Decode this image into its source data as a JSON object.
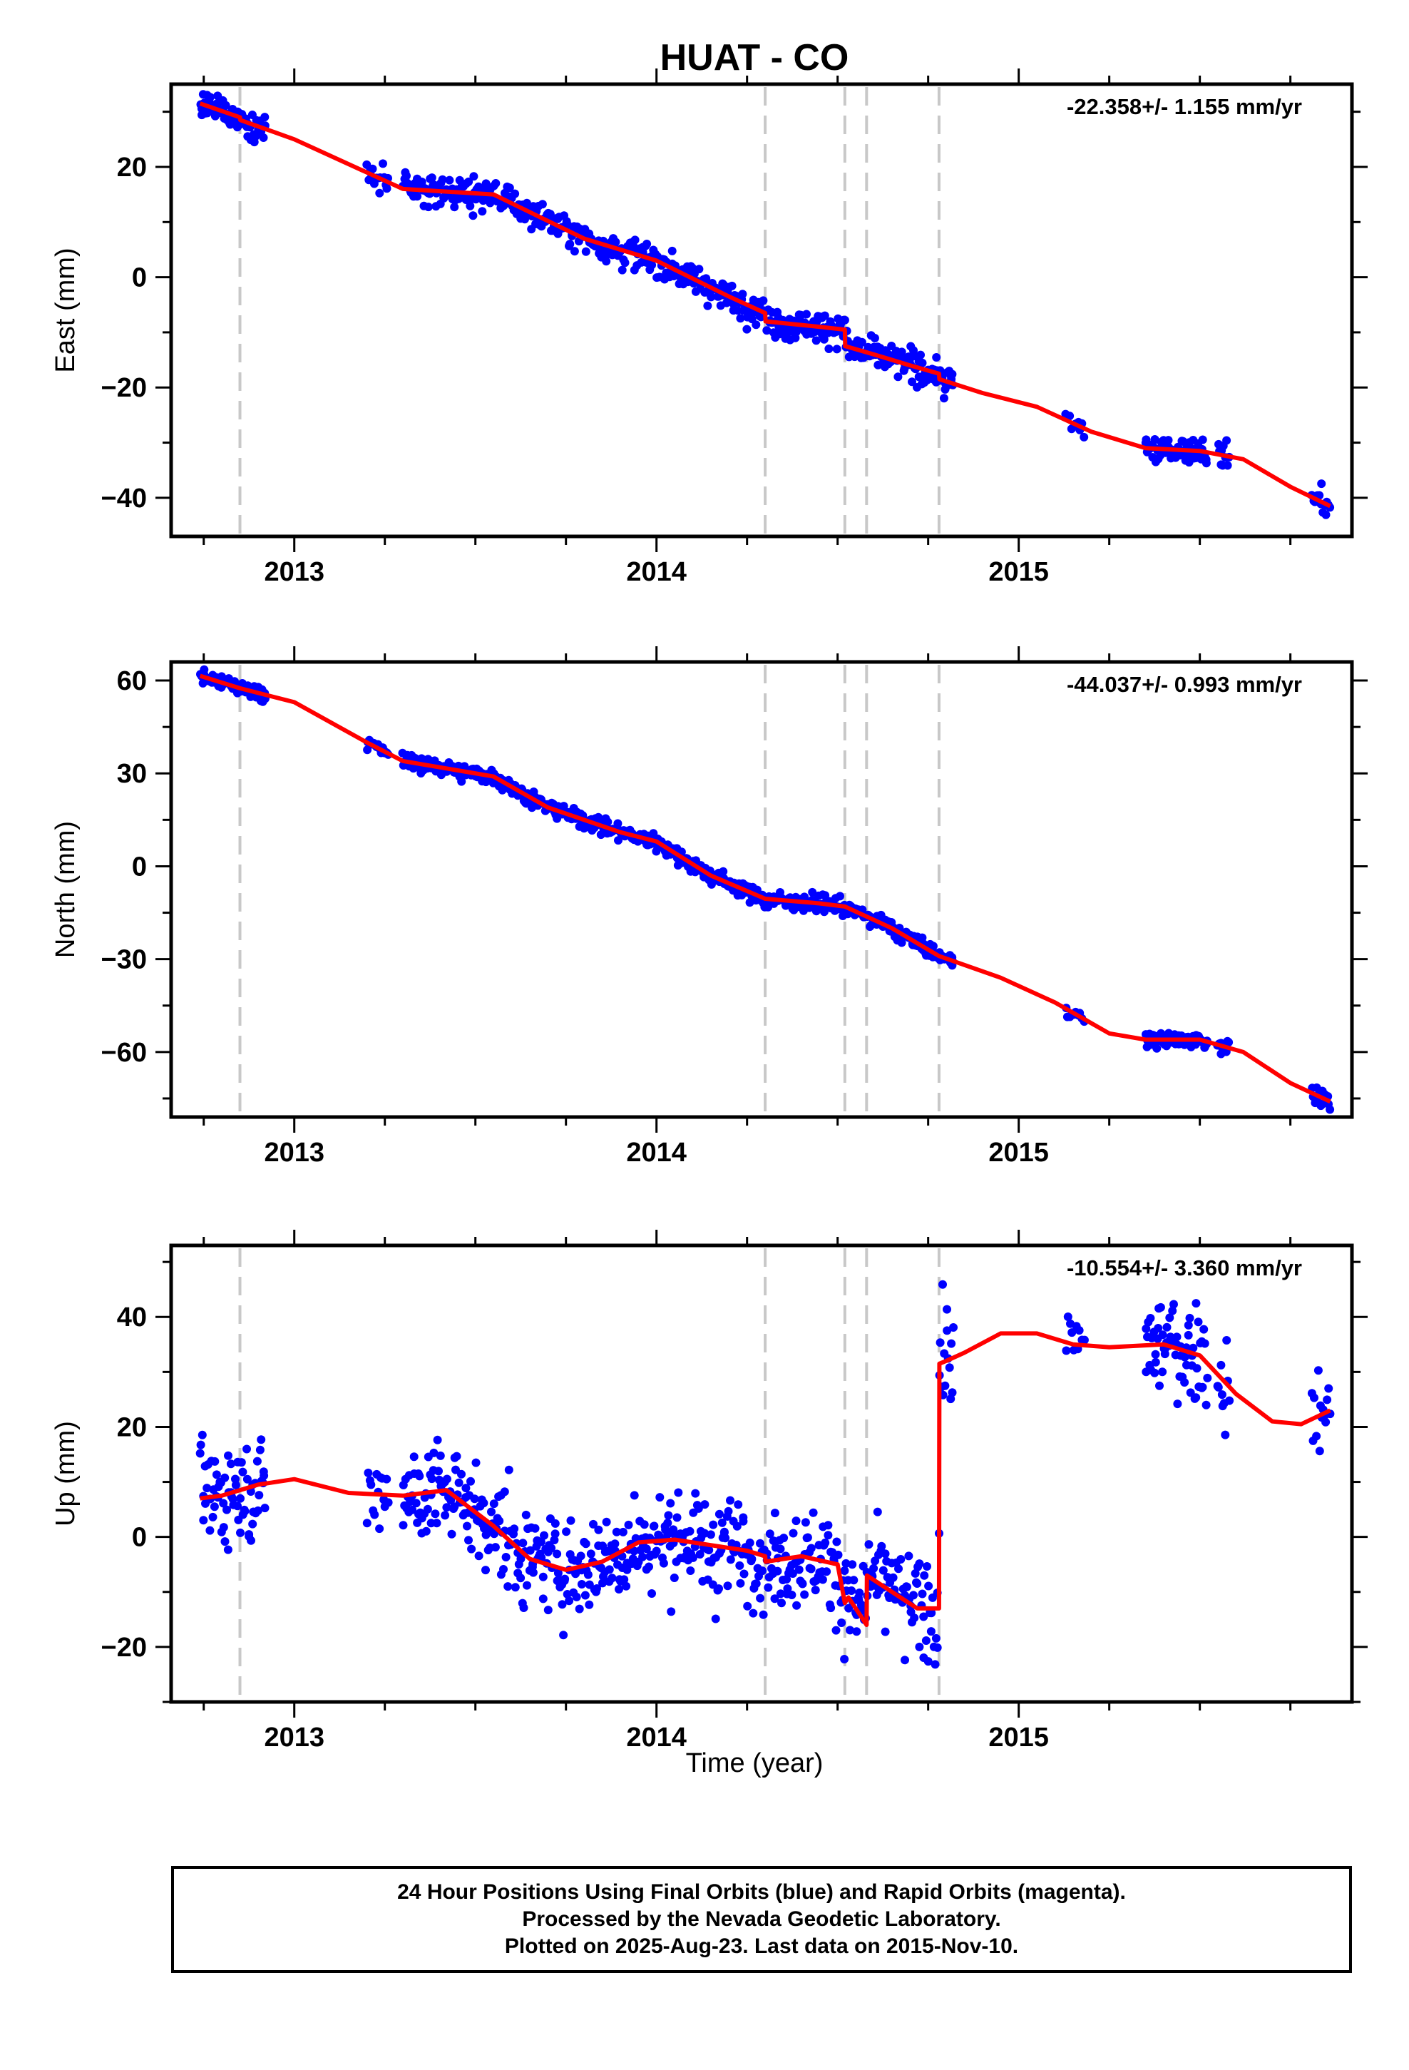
{
  "title": "HUAT - CO",
  "x_axis_label": "Time (year)",
  "colors": {
    "final_orbits": "#0000ff",
    "model_fit": "#ff0000",
    "step_lines": "#c8c8c8",
    "frame": "#000000"
  },
  "footer": {
    "line1": "24 Hour Positions Using Final Orbits (blue) and Rapid Orbits (magenta).",
    "line2": "Processed by the Nevada Geodetic Laboratory.",
    "line3": "Plotted on 2025-Aug-23. Last data on 2015-Nov-10."
  },
  "chart_data": [
    {
      "type": "scatter",
      "component": "East",
      "ylabel": "East (mm)",
      "xlabel": "",
      "rate_label": "-22.358+/- 1.155 mm/yr",
      "xlim": [
        2012.66,
        2015.92
      ],
      "ylim": [
        -47,
        35
      ],
      "x_ticks": [
        2013,
        2014,
        2015
      ],
      "y_ticks": [
        -40,
        -20,
        0,
        20
      ],
      "step_lines_x": [
        2012.85,
        2014.3,
        2014.52,
        2014.58,
        2014.78
      ],
      "model_series": {
        "name": "model",
        "x": [
          2012.74,
          2012.85,
          2012.851,
          2013.0,
          2013.2,
          2013.3,
          2013.55,
          2013.8,
          2014.0,
          2014.2,
          2014.3,
          2014.301,
          2014.45,
          2014.52,
          2014.521,
          2014.6,
          2014.7,
          2014.78,
          2014.781,
          2014.9,
          2015.05,
          2015.2,
          2015.35,
          2015.5,
          2015.62,
          2015.75,
          2015.86
        ],
        "y": [
          31.5,
          29.0,
          28.5,
          25.0,
          19.0,
          16.0,
          15.0,
          7.0,
          3.0,
          -3.5,
          -6.5,
          -8.0,
          -9.0,
          -9.5,
          -12.5,
          -14.0,
          -16.0,
          -17.5,
          -18.5,
          -21.0,
          -23.5,
          -28.0,
          -31.0,
          -31.5,
          -33.0,
          -38.0,
          -41.5
        ]
      },
      "observed_series": {
        "name": "daily positions",
        "segments": [
          {
            "x0": 2012.74,
            "x1": 2012.92,
            "count": 70,
            "scatter": 1.3
          },
          {
            "x0": 2013.2,
            "x1": 2013.26,
            "count": 15,
            "scatter": 1.3
          },
          {
            "x0": 2013.3,
            "x1": 2014.82,
            "count": 560,
            "scatter": 1.4
          },
          {
            "x0": 2015.13,
            "x1": 2015.18,
            "count": 10,
            "scatter": 1.0
          },
          {
            "x0": 2015.35,
            "x1": 2015.52,
            "count": 65,
            "scatter": 1.3
          },
          {
            "x0": 2015.55,
            "x1": 2015.58,
            "count": 10,
            "scatter": 1.2
          },
          {
            "x0": 2015.81,
            "x1": 2015.86,
            "count": 14,
            "scatter": 1.5
          }
        ]
      }
    },
    {
      "type": "scatter",
      "component": "North",
      "ylabel": "North (mm)",
      "xlabel": "",
      "rate_label": "-44.037+/- 0.993 mm/yr",
      "xlim": [
        2012.66,
        2015.92
      ],
      "ylim": [
        -81,
        66
      ],
      "x_ticks": [
        2013,
        2014,
        2015
      ],
      "y_ticks": [
        -60,
        -30,
        0,
        30,
        60
      ],
      "step_lines_x": [
        2012.85,
        2014.3,
        2014.52,
        2014.58,
        2014.78
      ],
      "model_series": {
        "name": "model",
        "x": [
          2012.74,
          2012.85,
          2013.0,
          2013.2,
          2013.3,
          2013.55,
          2013.7,
          2013.9,
          2014.0,
          2014.15,
          2014.3,
          2014.45,
          2014.52,
          2014.65,
          2014.78,
          2014.95,
          2015.1,
          2015.25,
          2015.35,
          2015.5,
          2015.62,
          2015.75,
          2015.86
        ],
        "y": [
          61.5,
          57.5,
          53.0,
          40.0,
          34.0,
          29.0,
          19.0,
          11.0,
          8.0,
          -3.0,
          -10.5,
          -12.0,
          -13.0,
          -20.0,
          -29.0,
          -36.0,
          -44.0,
          -54.0,
          -56.0,
          -56.0,
          -60.0,
          -70.0,
          -76.0
        ]
      },
      "observed_series": {
        "name": "daily positions",
        "segments": [
          {
            "x0": 2012.74,
            "x1": 2012.92,
            "count": 70,
            "scatter": 1.1
          },
          {
            "x0": 2013.2,
            "x1": 2013.26,
            "count": 15,
            "scatter": 1.4
          },
          {
            "x0": 2013.3,
            "x1": 2014.82,
            "count": 560,
            "scatter": 1.3
          },
          {
            "x0": 2015.13,
            "x1": 2015.18,
            "count": 10,
            "scatter": 1.1
          },
          {
            "x0": 2015.35,
            "x1": 2015.52,
            "count": 65,
            "scatter": 1.2
          },
          {
            "x0": 2015.55,
            "x1": 2015.58,
            "count": 10,
            "scatter": 1.2
          },
          {
            "x0": 2015.81,
            "x1": 2015.86,
            "count": 14,
            "scatter": 1.3
          }
        ]
      }
    },
    {
      "type": "scatter",
      "component": "Up",
      "ylabel": "Up (mm)",
      "xlabel": "Time (year)",
      "rate_label": "-10.554+/- 3.360 mm/yr",
      "xlim": [
        2012.66,
        2015.92
      ],
      "ylim": [
        -30,
        53
      ],
      "x_ticks": [
        2013,
        2014,
        2015
      ],
      "y_ticks": [
        -20,
        0,
        20,
        40
      ],
      "step_lines_x": [
        2012.85,
        2014.3,
        2014.52,
        2014.58,
        2014.78
      ],
      "model_series": {
        "name": "model",
        "x": [
          2012.74,
          2012.8,
          2012.85,
          2012.9,
          2013.0,
          2013.15,
          2013.3,
          2013.42,
          2013.55,
          2013.65,
          2013.75,
          2013.85,
          2013.95,
          2014.05,
          2014.15,
          2014.25,
          2014.3,
          2014.301,
          2014.4,
          2014.5,
          2014.52,
          2014.53,
          2014.58,
          2014.581,
          2014.65,
          2014.72,
          2014.78,
          2014.781,
          2014.8,
          2014.85,
          2014.95,
          2015.05,
          2015.15,
          2015.25,
          2015.4,
          2015.5,
          2015.6,
          2015.7,
          2015.78,
          2015.86
        ],
        "y": [
          7.0,
          7.5,
          8.5,
          9.5,
          10.5,
          8.0,
          7.5,
          8.5,
          2.0,
          -4.0,
          -6.0,
          -4.5,
          -1.0,
          -0.5,
          -1.5,
          -2.5,
          -3.5,
          -4.5,
          -3.5,
          -5.0,
          -12.0,
          -11.0,
          -16.0,
          -7.0,
          -10.0,
          -13.0,
          -13.0,
          31.5,
          32.0,
          33.5,
          37.0,
          37.0,
          35.0,
          34.5,
          35.0,
          33.0,
          26.0,
          21.0,
          20.5,
          23.0
        ]
      },
      "observed_series": {
        "name": "daily positions",
        "segments": [
          {
            "x0": 2012.74,
            "x1": 2012.92,
            "count": 70,
            "scatter": 4.5
          },
          {
            "x0": 2013.2,
            "x1": 2013.26,
            "count": 15,
            "scatter": 4.5
          },
          {
            "x0": 2013.3,
            "x1": 2014.82,
            "count": 560,
            "scatter": 4.5
          },
          {
            "x0": 2015.13,
            "x1": 2015.18,
            "count": 10,
            "scatter": 3.5
          },
          {
            "x0": 2015.35,
            "x1": 2015.52,
            "count": 65,
            "scatter": 4.5
          },
          {
            "x0": 2015.55,
            "x1": 2015.58,
            "count": 10,
            "scatter": 4.0
          },
          {
            "x0": 2015.81,
            "x1": 2015.86,
            "count": 14,
            "scatter": 4.5
          }
        ]
      }
    }
  ]
}
